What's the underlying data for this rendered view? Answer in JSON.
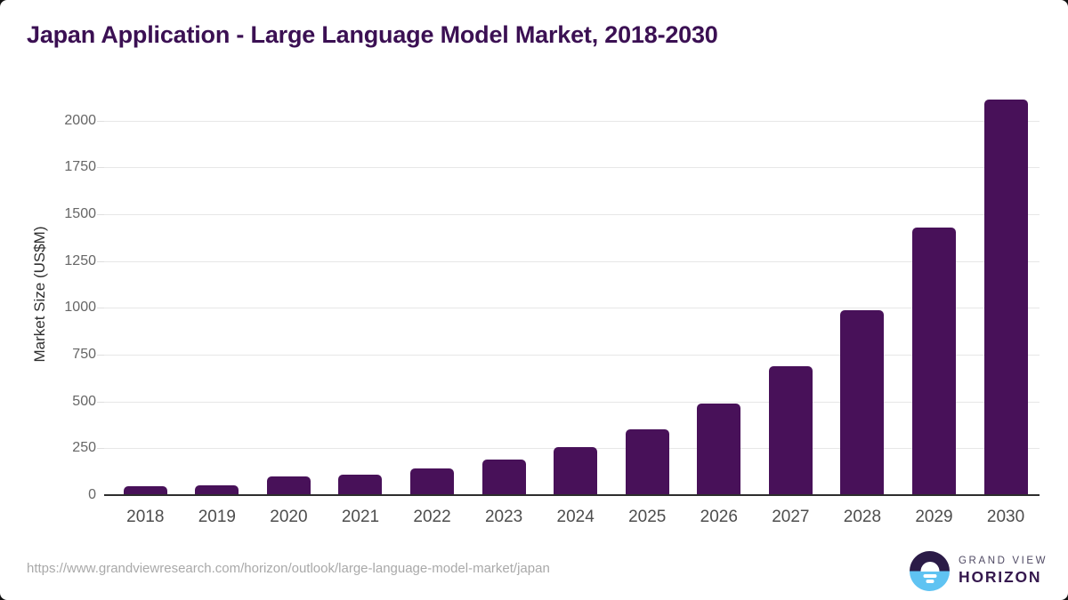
{
  "title": "Japan Application - Large Language Model Market, 2018-2030",
  "chart_data": {
    "type": "bar",
    "categories": [
      "2018",
      "2019",
      "2020",
      "2021",
      "2022",
      "2023",
      "2024",
      "2025",
      "2026",
      "2027",
      "2028",
      "2029",
      "2030"
    ],
    "values": [
      46,
      51,
      99,
      107,
      141,
      192,
      258,
      353,
      489,
      690,
      987,
      1430,
      2115
    ],
    "title": "Japan Application - Large Language Model Market, 2018-2030",
    "xlabel": "",
    "ylabel": "Market Size (US$M)",
    "yticks": [
      0,
      250,
      500,
      750,
      1000,
      1250,
      1500,
      1750,
      2000
    ],
    "ylim": [
      0,
      2146
    ],
    "grid": true,
    "legend": "none",
    "bar_color": "#481159"
  },
  "footer": {
    "source_url": "https://www.grandviewresearch.com/horizon/outlook/large-language-model-market/japan",
    "logo": {
      "line1": "GRAND VIEW",
      "line2": "HORIZON"
    }
  },
  "colors": {
    "title_text": "#3b1053",
    "bar_fill": "#481159",
    "gridline": "#e7e7e7",
    "axis_line": "#2d2d2d",
    "x_label_text": "#4d4d4d",
    "y_label_text": "#666666",
    "footer_text": "#a9a9a9",
    "logo_dark": "#2b1b47",
    "logo_blue": "#5fc3f2",
    "logo_text": "#35184e"
  }
}
